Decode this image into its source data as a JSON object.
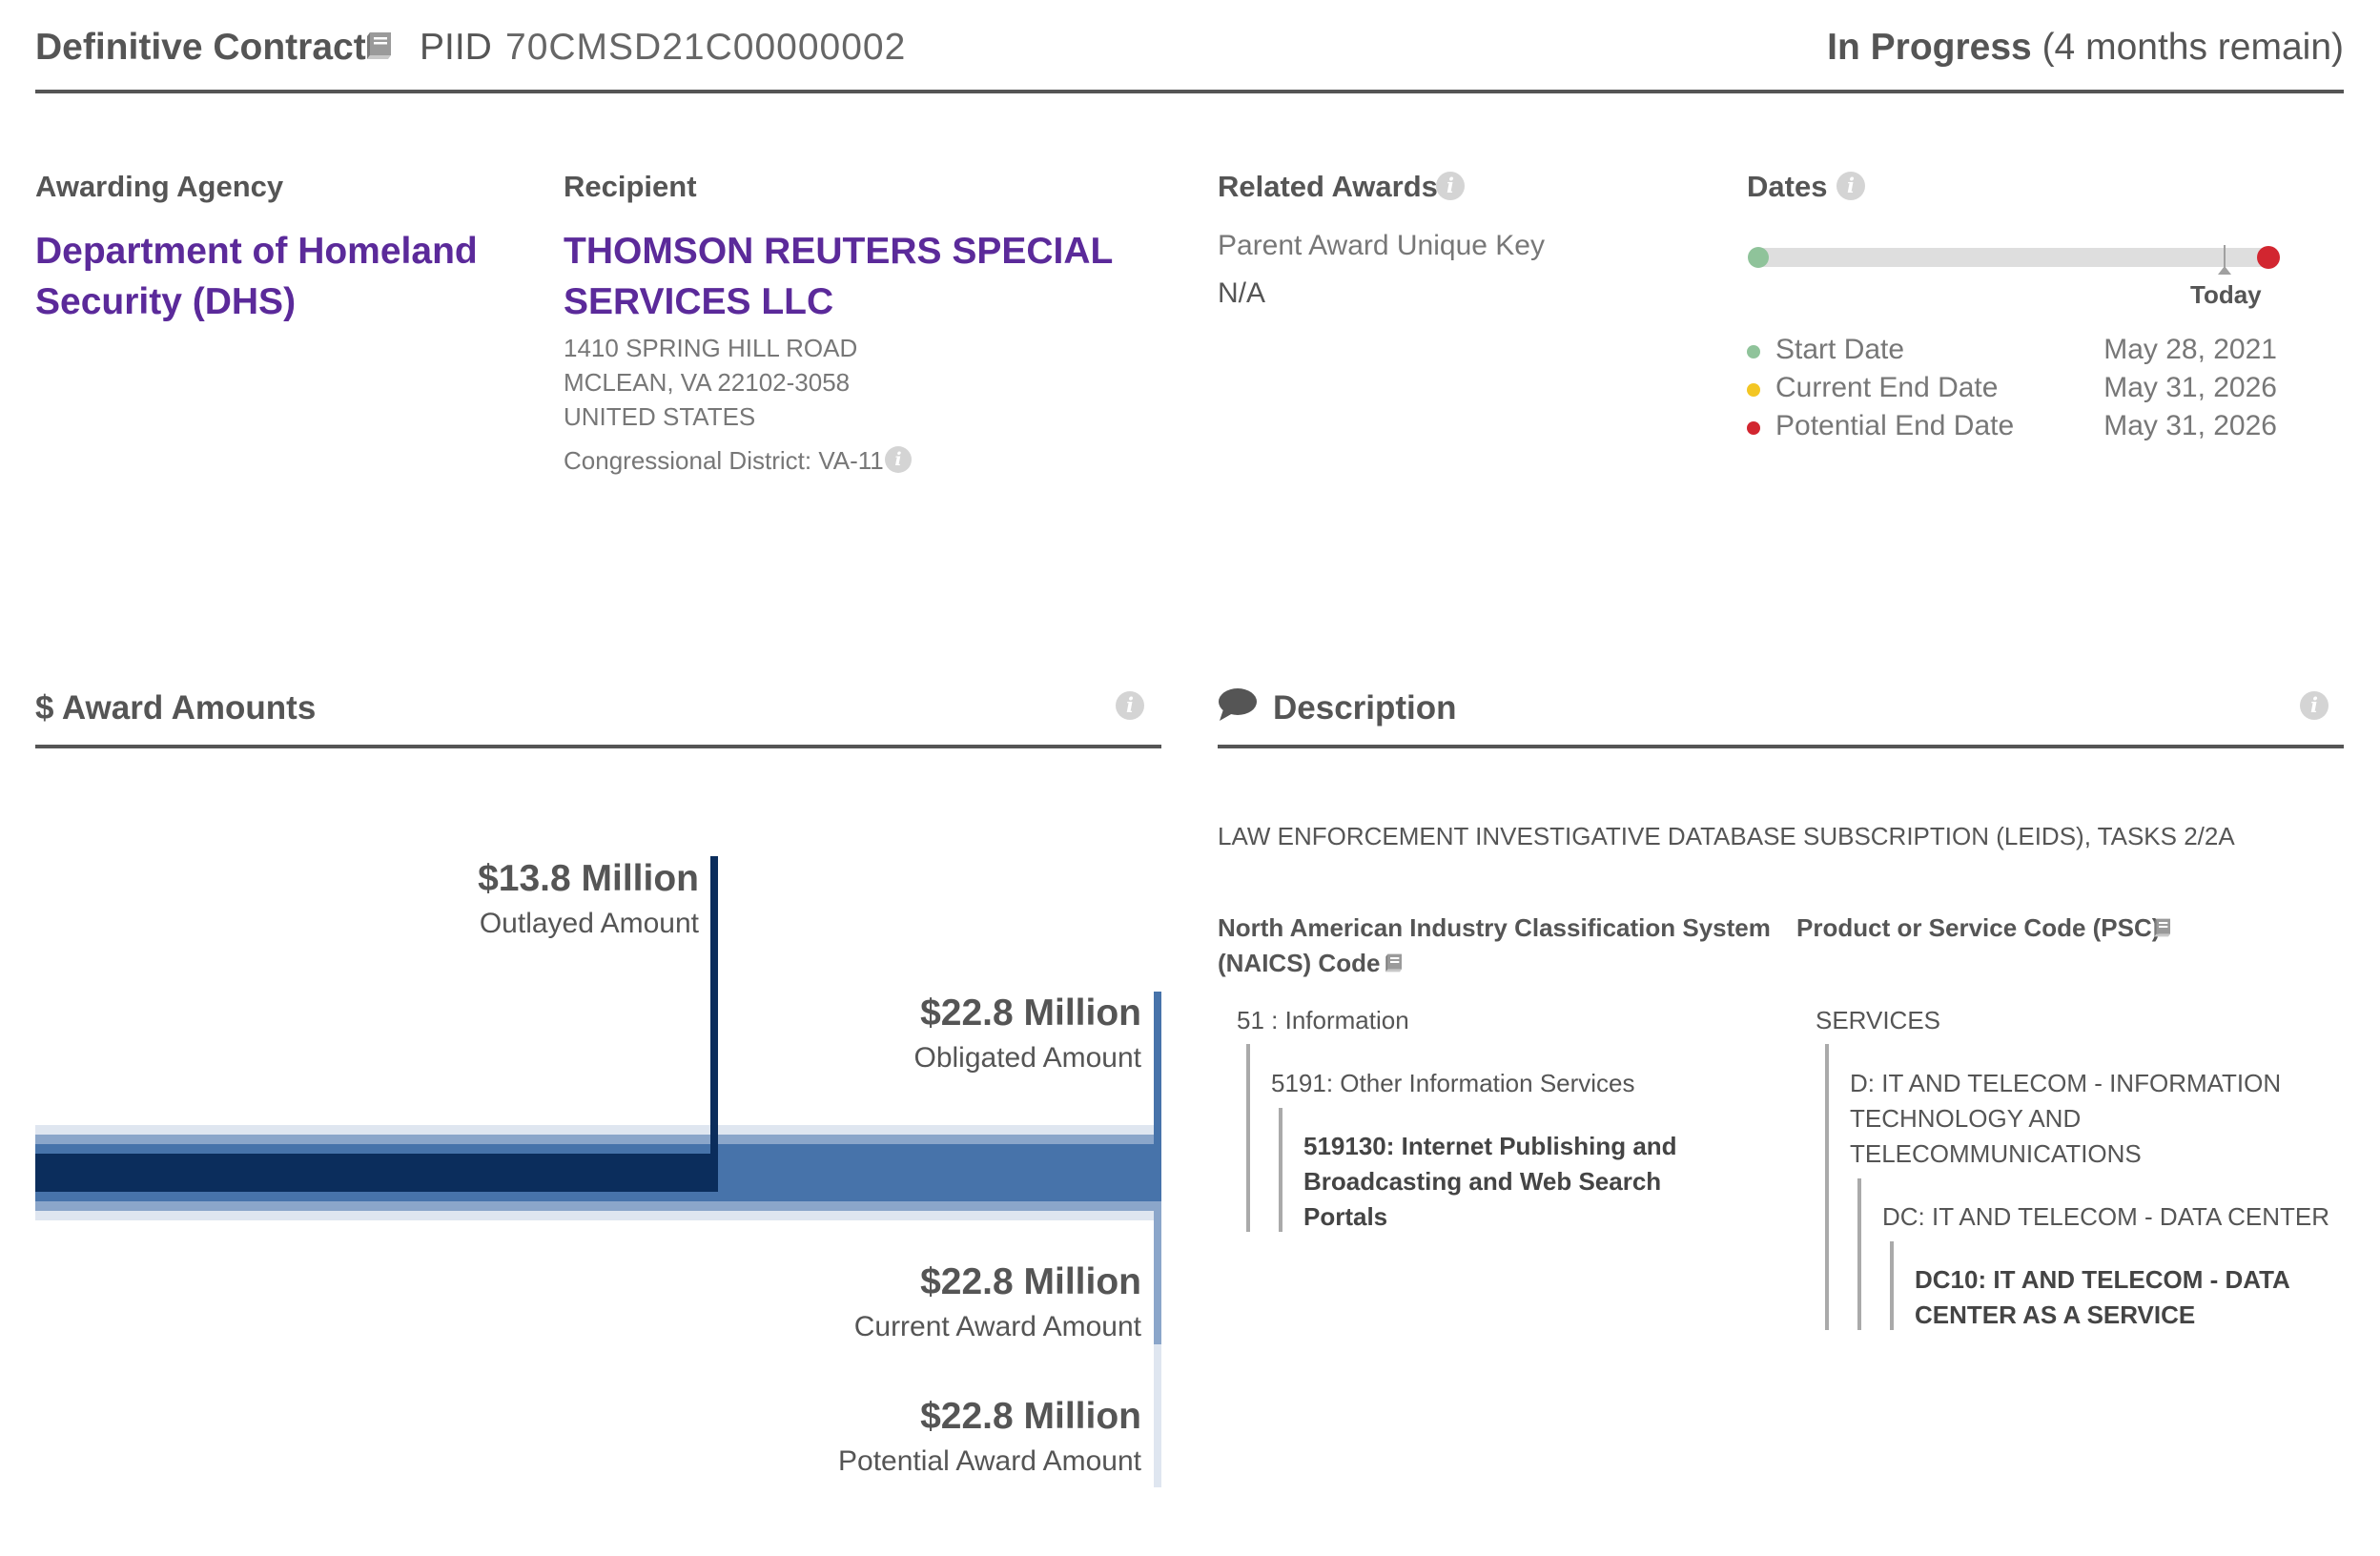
{
  "header": {
    "award_type": "Definitive Contract",
    "piid_label": "PIID",
    "piid_value": "70CMSD21C00000002",
    "status": "In Progress",
    "status_detail": "(4 months remain)"
  },
  "awarding_agency": {
    "label": "Awarding Agency",
    "name_line1": "Department of Homeland",
    "name_line2": "Security (DHS)"
  },
  "recipient": {
    "label": "Recipient",
    "name_line1": "THOMSON REUTERS SPECIAL",
    "name_line2": "SERVICES LLC",
    "address_line1": "1410 SPRING HILL ROAD",
    "address_line2": "MCLEAN, VA 22102-3058",
    "address_line3": "UNITED STATES",
    "congressional_district": "Congressional District: VA-11"
  },
  "related_awards": {
    "label": "Related Awards",
    "parent_key_label": "Parent Award Unique Key",
    "parent_key_value": "N/A"
  },
  "dates": {
    "label": "Dates",
    "today_label": "Today",
    "start_label": "Start Date",
    "start_value": "May 28, 2021",
    "current_end_label": "Current End Date",
    "current_end_value": "May 31, 2026",
    "potential_end_label": "Potential End Date",
    "potential_end_value": "May 31, 2026",
    "colors": {
      "start": "#8fc39a",
      "current_end": "#f3c623",
      "potential_end": "#d22630"
    }
  },
  "award_amounts": {
    "title": "$ Award Amounts",
    "outlayed_value": "$13.8 Million",
    "outlayed_label": "Outlayed Amount",
    "obligated_value": "$22.8 Million",
    "obligated_label": "Obligated Amount",
    "current_value": "$22.8 Million",
    "current_label": "Current Award Amount",
    "potential_value": "$22.8 Million",
    "potential_label": "Potential Award Amount",
    "colors": {
      "outlayed": "#0b2d5c",
      "obligated": "#4773aa",
      "current": "#8ba6ca",
      "potential": "#dfe6f0"
    }
  },
  "description": {
    "title": "Description",
    "text": "LAW ENFORCEMENT INVESTIGATIVE DATABASE SUBSCRIPTION (LEIDS), TASKS 2/2A",
    "naics": {
      "label_line1": "North American Industry Classification System",
      "label_line2": "(NAICS) Code",
      "level1": "51 : Information",
      "level2": "5191: Other Information Services",
      "level3_line1": "519130: Internet Publishing and",
      "level3_line2": "Broadcasting and Web Search",
      "level3_line3": "Portals"
    },
    "psc": {
      "label": "Product or Service Code  (PSC)",
      "level1": "SERVICES",
      "level2_line1": "D: IT AND TELECOM - INFORMATION",
      "level2_line2": "TECHNOLOGY AND",
      "level2_line3": "TELECOMMUNICATIONS",
      "level3": "DC: IT AND TELECOM - DATA CENTER",
      "level4_line1": "DC10: IT AND TELECOM - DATA",
      "level4_line2": "CENTER AS A SERVICE"
    }
  }
}
